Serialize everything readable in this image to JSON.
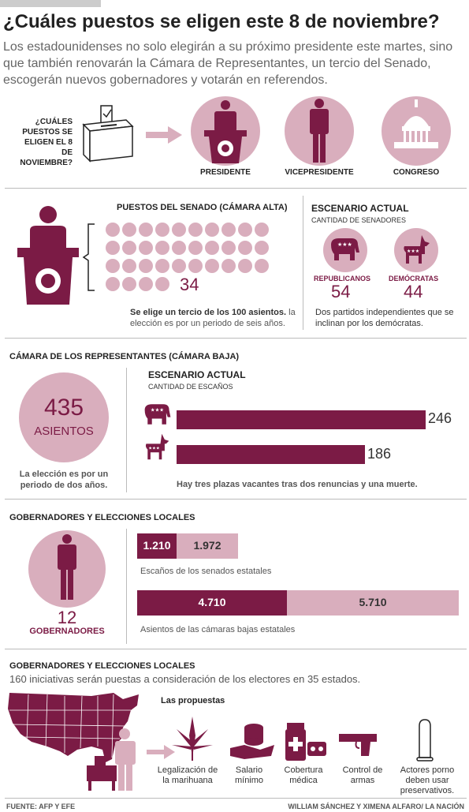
{
  "header": {
    "title": "¿Cuáles puestos se eligen este 8 de noviembre?",
    "intro": "Los estadounidenses no solo elegirán a su próximo presidente este martes, sino que también renovarán la Cámara de Representantes, un tercio del Senado, escogerán nuevos gobernadores y votarán en referendos."
  },
  "overview": {
    "question": "¿CUÁLES PUESTOS SE ELIGEN EL 8 DE NOVIEMBRE?",
    "items": [
      "PRESIDENTE",
      "VICEPRESIDENTE",
      "CONGRESO"
    ]
  },
  "senate": {
    "title": "PUESTOS DEL SENADO (CÁMARA ALTA)",
    "seats_up": "34",
    "note_bold": "Se elige un tercio de los 100 asientos.",
    "note_rest": " la elección es por un periodo de seis años.",
    "scenario_title": "ESCENARIO ACTUAL",
    "scenario_subtitle": "CANTIDAD DE SENADORES",
    "republicans_label": "REPUBLICANOS",
    "republicans_value": "54",
    "democrats_label": "DEMÓCRATAS",
    "democrats_value": "44",
    "independents_note": "Dos partidos independientes que se inclinan por los demócratas."
  },
  "house": {
    "title": "CÁMARA DE LOS REPRESENTANTES (CÁMARA BAJA)",
    "seats_number": "435",
    "seats_label": "ASIENTOS",
    "term_note": "La elección es por un periodo de dos años.",
    "scenario_title": "ESCENARIO ACTUAL",
    "scenario_subtitle": "CANTIDAD DE ESCAÑOS",
    "republicans_value": "246",
    "democrats_value": "186",
    "vacancies_note": "Hay tres plazas vacantes tras dos renuncias y una muerte."
  },
  "chart_data": {
    "type": "bar",
    "categories": [
      "Republicanos",
      "Demócratas"
    ],
    "values": [
      246,
      186
    ]
  },
  "governors": {
    "title": "GOBERNADORES Y ELECCIONES LOCALES",
    "count": "12",
    "label": "GOBERNADORES",
    "state_senate_a": "1.210",
    "state_senate_b": "1.972",
    "state_senate_caption": "Escaños de los senados estatales",
    "state_house_a": "4.710",
    "state_house_b": "5.710",
    "state_house_caption": "Asientos de las cámaras bajas estatales"
  },
  "referendums": {
    "title": "GOBERNADORES Y ELECCIONES LOCALES",
    "subtitle": "160 iniciativas serán puestas a consideración de los electores en 35 estados.",
    "proposals_title": "Las propuestas",
    "proposals": [
      "Legalización de la marihuana",
      "Salario mínimo",
      "Cobertura médica",
      "Control de armas",
      "Actores porno deben usar preservativos."
    ]
  },
  "footer": {
    "source": "FUENTE: AFP Y EFE",
    "credits": "WILLIAM SÁNCHEZ Y XIMENA ALFARO/ LA NACIÓN"
  },
  "colors": {
    "maroon": "#7b1b45",
    "pink": "#d9aebd"
  }
}
